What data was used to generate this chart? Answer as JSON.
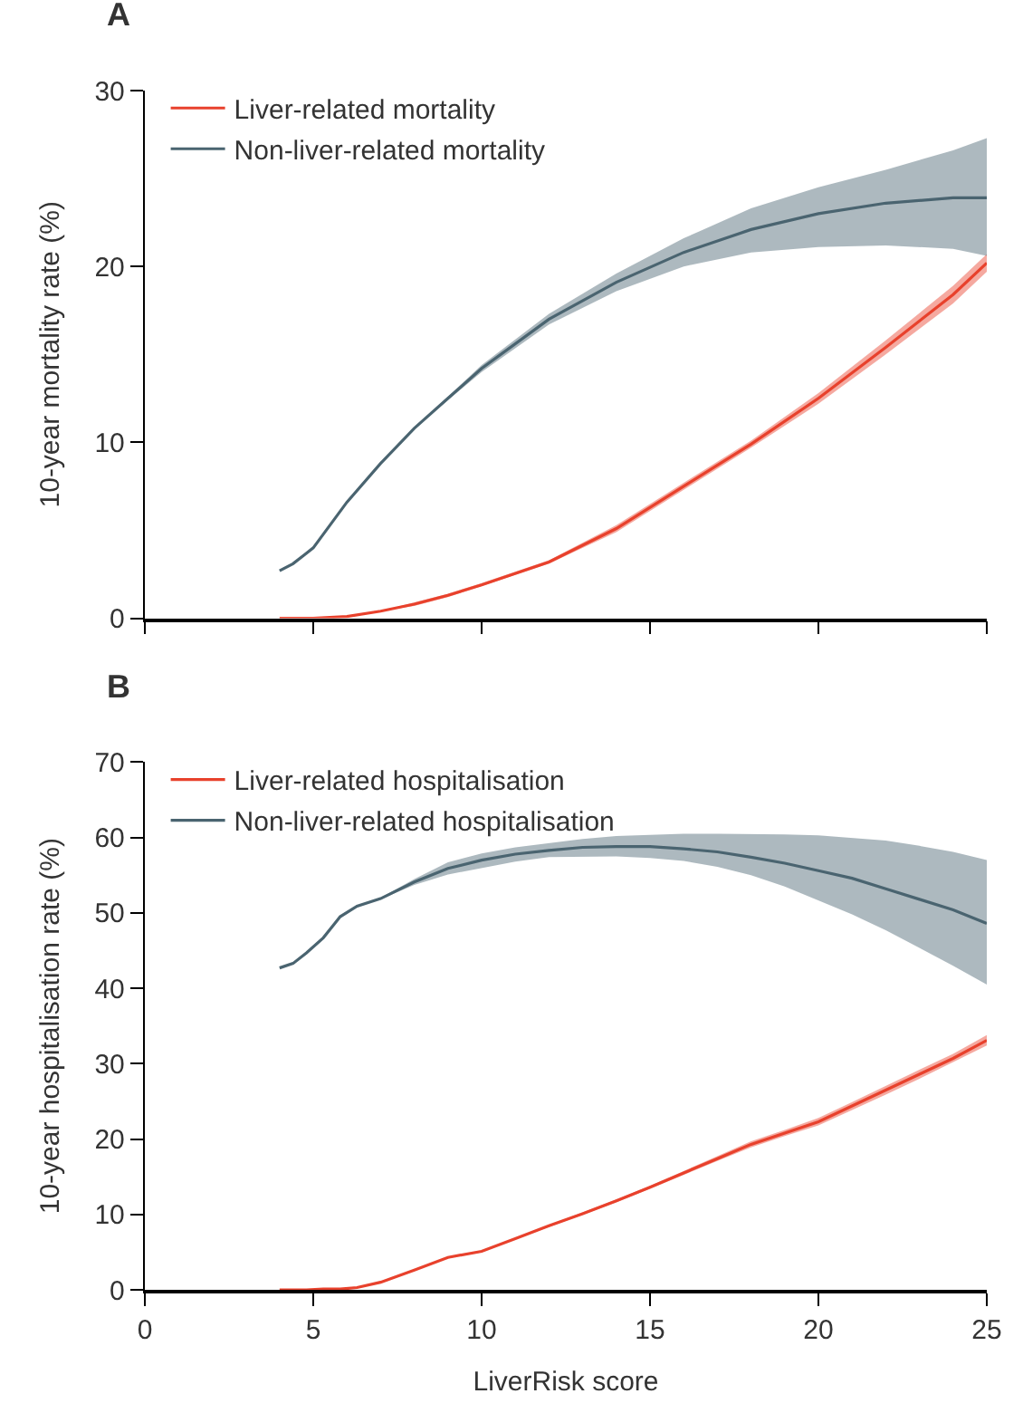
{
  "chart_data": [
    {
      "type": "line",
      "title": "A",
      "ylabel": "10-year mortality rate (%)",
      "xlim": [
        0,
        25
      ],
      "xticks": [
        0,
        5,
        10,
        15,
        20,
        25
      ],
      "ylim": [
        0,
        30
      ],
      "yticks": [
        0,
        10,
        20,
        30
      ],
      "tick_labels": "y",
      "legend": "top left",
      "x": [
        4,
        4.4,
        4.8,
        5,
        6,
        7,
        8,
        9,
        10,
        12,
        14,
        16,
        18,
        20,
        22,
        24,
        25
      ],
      "series": [
        {
          "name": "Liver-related mortality",
          "color": "#e8412c",
          "values": [
            0,
            0,
            0,
            0,
            0.1,
            0.4,
            0.8,
            1.3,
            1.9,
            3.2,
            5.1,
            7.5,
            9.9,
            12.5,
            15.4,
            18.4,
            20.2
          ],
          "lower": [
            0,
            0,
            0,
            0,
            0.1,
            0.4,
            0.7,
            1.2,
            1.8,
            3.1,
            4.9,
            7.3,
            9.7,
            12.2,
            15.0,
            17.9,
            19.7
          ],
          "upper": [
            0,
            0,
            0,
            0,
            0.1,
            0.4,
            0.9,
            1.4,
            2.0,
            3.3,
            5.3,
            7.7,
            10.1,
            12.8,
            15.8,
            18.9,
            20.7
          ]
        },
        {
          "name": "Non-liver-related mortality",
          "color": "#4a6470",
          "values": [
            2.7,
            3.1,
            3.7,
            4.0,
            6.6,
            8.8,
            10.8,
            12.5,
            14.2,
            17.0,
            19.1,
            20.8,
            22.1,
            23.0,
            23.6,
            23.9,
            23.9
          ],
          "lower": [
            2.7,
            3.1,
            3.7,
            4.0,
            6.6,
            8.8,
            10.8,
            12.4,
            14.0,
            16.7,
            18.6,
            20.0,
            20.8,
            21.1,
            21.2,
            21.0,
            20.6
          ],
          "upper": [
            2.7,
            3.1,
            3.7,
            4.0,
            6.6,
            8.8,
            10.8,
            12.6,
            14.4,
            17.3,
            19.6,
            21.6,
            23.3,
            24.5,
            25.5,
            26.6,
            27.3
          ]
        }
      ]
    },
    {
      "type": "line",
      "title": "B",
      "xlabel": "LiverRisk score",
      "ylabel": "10-year hospitalisation rate (%)",
      "xlim": [
        0,
        25
      ],
      "xticks": [
        0,
        5,
        10,
        15,
        20,
        25
      ],
      "ylim": [
        0,
        70
      ],
      "yticks": [
        0,
        10,
        20,
        30,
        40,
        50,
        60,
        70
      ],
      "legend": "top left",
      "x": [
        4,
        4.4,
        4.8,
        5.3,
        5.8,
        6.3,
        7,
        8,
        9,
        10,
        11,
        12,
        13,
        14,
        15,
        16,
        17,
        18,
        19,
        20,
        21,
        22,
        23,
        24,
        25
      ],
      "series": [
        {
          "name": "Liver-related hospitalisation",
          "color": "#e8412c",
          "values": [
            0,
            0,
            0,
            0.1,
            0.1,
            0.3,
            1.0,
            2.6,
            4.3,
            5.1,
            6.8,
            8.5,
            10.1,
            11.8,
            13.6,
            15.5,
            17.4,
            19.3,
            20.8,
            22.3,
            24.4,
            26.5,
            28.6,
            30.7,
            33.1
          ],
          "lower": [
            0,
            0,
            0,
            0.1,
            0.1,
            0.3,
            1.0,
            2.6,
            4.2,
            5.0,
            6.7,
            8.4,
            10.0,
            11.6,
            13.4,
            15.2,
            17.1,
            18.9,
            20.4,
            21.8,
            23.9,
            25.9,
            28.0,
            30.1,
            32.4
          ],
          "upper": [
            0,
            0,
            0,
            0.1,
            0.1,
            0.3,
            1.0,
            2.6,
            4.4,
            5.2,
            6.9,
            8.6,
            10.2,
            12.0,
            13.8,
            15.8,
            17.7,
            19.7,
            21.2,
            22.8,
            24.9,
            27.1,
            29.2,
            31.3,
            33.8
          ]
        },
        {
          "name": "Non-liver-related hospitalisation",
          "color": "#4a6470",
          "values": [
            42.7,
            43.3,
            44.7,
            46.7,
            49.5,
            50.9,
            51.9,
            54.1,
            55.9,
            57.0,
            57.8,
            58.3,
            58.7,
            58.8,
            58.8,
            58.5,
            58.1,
            57.4,
            56.6,
            55.6,
            54.6,
            53.2,
            51.8,
            50.4,
            48.6
          ],
          "lower": [
            42.7,
            43.3,
            44.7,
            46.7,
            49.5,
            50.9,
            51.8,
            53.7,
            55.1,
            56.0,
            56.8,
            57.4,
            57.5,
            57.5,
            57.3,
            56.9,
            56.1,
            55.0,
            53.5,
            51.7,
            49.8,
            47.7,
            45.4,
            43.0,
            40.5
          ],
          "upper": [
            42.7,
            43.3,
            44.7,
            46.7,
            49.5,
            50.9,
            52.0,
            54.5,
            56.7,
            57.9,
            58.7,
            59.3,
            59.8,
            60.2,
            60.4,
            60.5,
            60.5,
            60.5,
            60.4,
            60.3,
            60.0,
            59.6,
            58.9,
            58.1,
            57.0
          ]
        }
      ]
    }
  ]
}
